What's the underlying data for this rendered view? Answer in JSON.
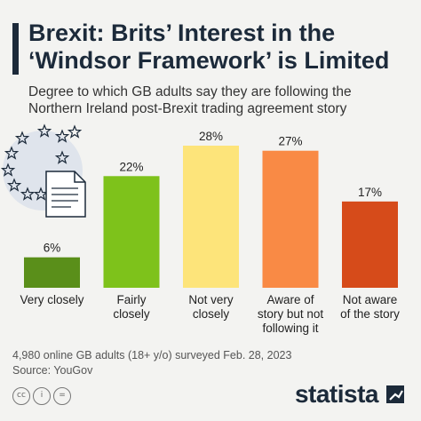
{
  "header": {
    "title": "Brexit: Brits’ Interest in the ‘Windsor Framework’ is Limited",
    "title_line1": "Brexit: Brits’ Interest in the",
    "title_line2": "‘Windsor Framework’ is Limited",
    "subtitle_line1": "Degree to which GB adults say they are following the",
    "subtitle_line2": "Northern Ireland post-Brexit trading agreement story"
  },
  "chart_data": {
    "type": "bar",
    "categories": [
      [
        "Very closely"
      ],
      [
        "Fairly",
        "closely"
      ],
      [
        "Not very",
        "closely"
      ],
      [
        "Aware of",
        "story but not",
        "following it"
      ],
      [
        "Not aware",
        "of the story"
      ]
    ],
    "values": [
      6,
      22,
      28,
      27,
      17
    ],
    "value_labels": [
      "6%",
      "22%",
      "28%",
      "27%",
      "17%"
    ],
    "colors": [
      "#5a8f1a",
      "#7ec21b",
      "#fde47a",
      "#f98a45",
      "#d64b1a"
    ],
    "ylim": [
      0,
      28
    ]
  },
  "footer": {
    "note": "4,980 online GB adults (18+ y/o) surveyed Feb. 28, 2023",
    "source": "Source: YouGov",
    "brand": "statista",
    "license_icons": [
      "cc",
      "i",
      "="
    ]
  }
}
